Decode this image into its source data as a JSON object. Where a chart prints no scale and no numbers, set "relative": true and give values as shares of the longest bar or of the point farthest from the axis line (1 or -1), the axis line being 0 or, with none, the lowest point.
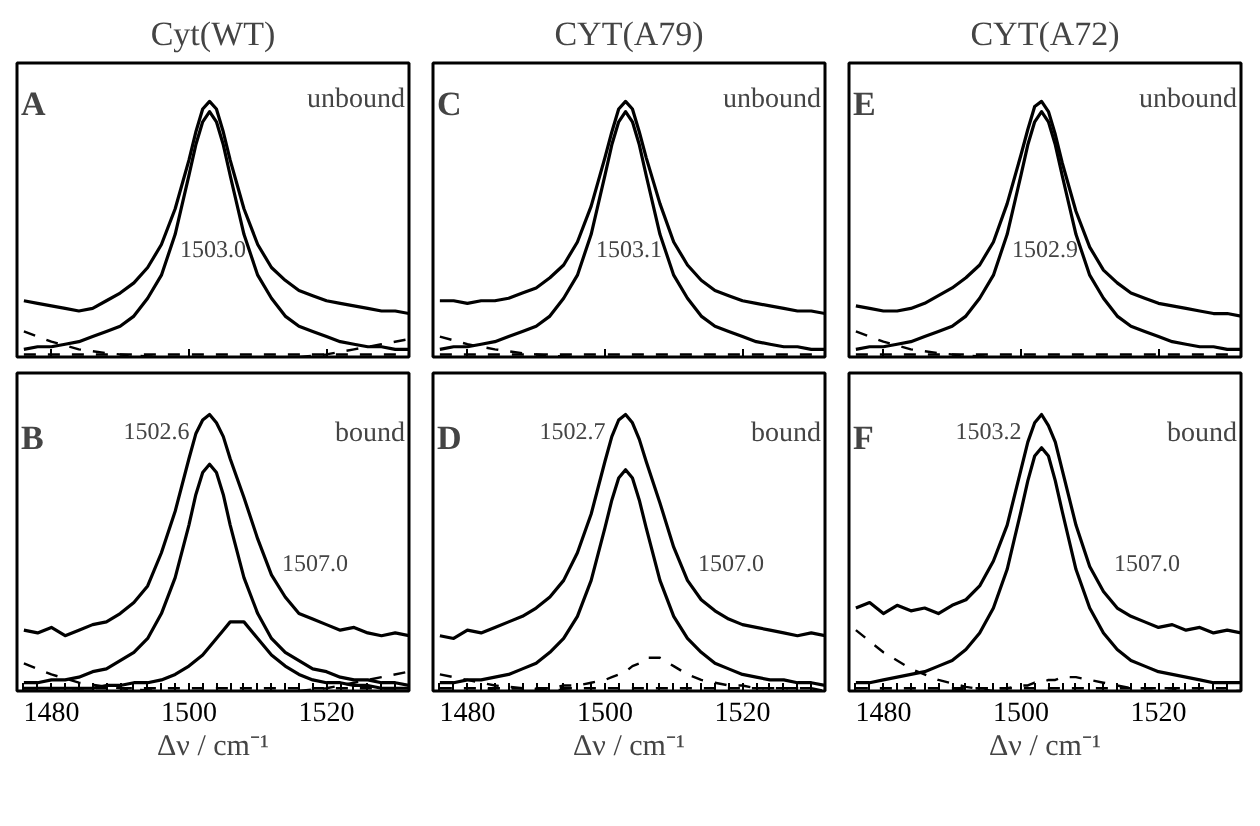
{
  "chart_data": [
    {
      "type": "line",
      "title": "Cyt(WT)",
      "relative": true,
      "tick_labels": false,
      "xlim": [
        1475,
        1532
      ],
      "xticks": [
        1480,
        1500,
        1520
      ],
      "x": [
        1476,
        1478,
        1480,
        1482,
        1484,
        1486,
        1488,
        1490,
        1492,
        1494,
        1496,
        1498,
        1500,
        1501,
        1502,
        1503,
        1504,
        1505,
        1506,
        1508,
        1510,
        1512,
        1514,
        1516,
        1518,
        1520,
        1522,
        1524,
        1526,
        1528,
        1530,
        1532
      ],
      "annotations": [
        "A",
        "unbound",
        "1503.0"
      ],
      "series": [
        {
          "color": "#000000",
          "values": [
            0.22,
            0.21,
            0.2,
            0.19,
            0.18,
            0.19,
            0.22,
            0.25,
            0.29,
            0.35,
            0.44,
            0.58,
            0.77,
            0.88,
            0.97,
            1.0,
            0.97,
            0.88,
            0.77,
            0.58,
            0.44,
            0.35,
            0.3,
            0.26,
            0.24,
            0.22,
            0.21,
            0.2,
            0.19,
            0.18,
            0.18,
            0.17
          ]
        },
        {
          "color": "#000000",
          "values": [
            0.03,
            0.04,
            0.04,
            0.05,
            0.06,
            0.08,
            0.1,
            0.12,
            0.16,
            0.23,
            0.32,
            0.48,
            0.71,
            0.83,
            0.92,
            0.96,
            0.92,
            0.83,
            0.71,
            0.48,
            0.32,
            0.23,
            0.16,
            0.12,
            0.1,
            0.08,
            0.06,
            0.05,
            0.04,
            0.04,
            0.03,
            0.03
          ]
        },
        {
          "color": "#000000",
          "line_style": "dashed",
          "x": [
            1476,
            1480,
            1484,
            1488,
            1492,
            1496
          ],
          "values": [
            0.1,
            0.06,
            0.03,
            0.015,
            0.005,
            0
          ]
        },
        {
          "color": "#000000",
          "line_style": "dashed",
          "x": [
            1516,
            1520,
            1524,
            1528,
            1532
          ],
          "values": [
            0,
            0.01,
            0.03,
            0.05,
            0.07
          ]
        },
        {
          "color": "#000000",
          "line_style": "dashed",
          "x": [
            1476,
            1532
          ],
          "values": [
            0.01,
            0.01
          ]
        }
      ]
    },
    {
      "type": "line",
      "title": "CYT(A79)",
      "relative": true,
      "tick_labels": false,
      "xlim": [
        1475,
        1532
      ],
      "xticks": [
        1480,
        1500,
        1520
      ],
      "x": [
        1476,
        1478,
        1480,
        1482,
        1484,
        1486,
        1488,
        1490,
        1492,
        1494,
        1496,
        1498,
        1500,
        1501,
        1502,
        1503,
        1504,
        1505,
        1506,
        1508,
        1510,
        1512,
        1514,
        1516,
        1518,
        1520,
        1522,
        1524,
        1526,
        1528,
        1530,
        1532
      ],
      "annotations": [
        "C",
        "unbound",
        "1503.1"
      ],
      "series": [
        {
          "color": "#000000",
          "values": [
            0.22,
            0.22,
            0.21,
            0.22,
            0.22,
            0.23,
            0.25,
            0.27,
            0.31,
            0.36,
            0.45,
            0.59,
            0.78,
            0.88,
            0.97,
            1.0,
            0.97,
            0.88,
            0.78,
            0.6,
            0.45,
            0.36,
            0.3,
            0.26,
            0.24,
            0.22,
            0.21,
            0.2,
            0.19,
            0.18,
            0.18,
            0.17
          ]
        },
        {
          "color": "#000000",
          "values": [
            0.03,
            0.04,
            0.04,
            0.05,
            0.06,
            0.08,
            0.1,
            0.12,
            0.16,
            0.23,
            0.32,
            0.48,
            0.71,
            0.83,
            0.92,
            0.96,
            0.92,
            0.83,
            0.71,
            0.48,
            0.32,
            0.23,
            0.16,
            0.12,
            0.1,
            0.08,
            0.06,
            0.05,
            0.04,
            0.04,
            0.03,
            0.03
          ]
        },
        {
          "color": "#000000",
          "line_style": "dashed",
          "x": [
            1476,
            1480,
            1484,
            1488,
            1492,
            1496
          ],
          "values": [
            0.08,
            0.05,
            0.03,
            0.015,
            0.005,
            0
          ]
        },
        {
          "color": "#000000",
          "line_style": "dashed",
          "x": [
            1476,
            1532
          ],
          "values": [
            0.01,
            0.01
          ]
        }
      ]
    },
    {
      "type": "line",
      "title": "CYT(A72)",
      "relative": true,
      "tick_labels": false,
      "xlim": [
        1475,
        1532
      ],
      "xticks": [
        1480,
        1500,
        1520
      ],
      "x": [
        1476,
        1478,
        1480,
        1482,
        1484,
        1486,
        1488,
        1490,
        1492,
        1494,
        1496,
        1498,
        1500,
        1501,
        1502,
        1503,
        1504,
        1505,
        1506,
        1508,
        1510,
        1512,
        1514,
        1516,
        1518,
        1520,
        1522,
        1524,
        1526,
        1528,
        1530,
        1532
      ],
      "annotations": [
        "E",
        "unbound",
        "1502.9"
      ],
      "series": [
        {
          "color": "#000000",
          "values": [
            0.2,
            0.19,
            0.18,
            0.18,
            0.19,
            0.21,
            0.24,
            0.27,
            0.31,
            0.36,
            0.45,
            0.6,
            0.79,
            0.89,
            0.98,
            1.0,
            0.96,
            0.87,
            0.76,
            0.57,
            0.43,
            0.34,
            0.29,
            0.25,
            0.23,
            0.21,
            0.2,
            0.19,
            0.18,
            0.17,
            0.17,
            0.16
          ]
        },
        {
          "color": "#000000",
          "values": [
            0.03,
            0.04,
            0.04,
            0.05,
            0.06,
            0.08,
            0.1,
            0.12,
            0.16,
            0.23,
            0.32,
            0.48,
            0.71,
            0.83,
            0.92,
            0.96,
            0.92,
            0.83,
            0.71,
            0.48,
            0.32,
            0.23,
            0.16,
            0.12,
            0.1,
            0.08,
            0.06,
            0.05,
            0.04,
            0.04,
            0.03,
            0.03
          ]
        },
        {
          "color": "#000000",
          "line_style": "dashed",
          "x": [
            1476,
            1480,
            1484,
            1488,
            1492,
            1496
          ],
          "values": [
            0.1,
            0.06,
            0.03,
            0.015,
            0.005,
            0
          ]
        },
        {
          "color": "#000000",
          "line_style": "dashed",
          "x": [
            1476,
            1532
          ],
          "values": [
            0.01,
            0.01
          ]
        }
      ]
    },
    {
      "type": "line",
      "xlabel": "Δν / cm⁻¹",
      "relative": true,
      "tick_labels": "x",
      "xlim": [
        1475,
        1532
      ],
      "xticks": [
        {
          "value": 1476,
          "label": null
        },
        {
          "value": 1478,
          "label": null
        },
        1480,
        {
          "value": 1482,
          "label": null
        },
        {
          "value": 1484,
          "label": null
        },
        {
          "value": 1486,
          "label": null
        },
        {
          "value": 1488,
          "label": null
        },
        {
          "value": 1490,
          "label": null
        },
        {
          "value": 1492,
          "label": null
        },
        {
          "value": 1494,
          "label": null
        },
        {
          "value": 1496,
          "label": null
        },
        {
          "value": 1498,
          "label": null
        },
        1500,
        {
          "value": 1502,
          "label": null
        },
        {
          "value": 1504,
          "label": null
        },
        {
          "value": 1506,
          "label": null
        },
        {
          "value": 1508,
          "label": null
        },
        {
          "value": 1510,
          "label": null
        },
        {
          "value": 1512,
          "label": null
        },
        {
          "value": 1514,
          "label": null
        },
        {
          "value": 1516,
          "label": null
        },
        {
          "value": 1518,
          "label": null
        },
        1520,
        {
          "value": 1522,
          "label": null
        },
        {
          "value": 1524,
          "label": null
        },
        {
          "value": 1526,
          "label": null
        },
        {
          "value": 1528,
          "label": null
        },
        {
          "value": 1530,
          "label": null
        }
      ],
      "x": [
        1476,
        1478,
        1480,
        1482,
        1484,
        1486,
        1488,
        1490,
        1492,
        1494,
        1496,
        1498,
        1500,
        1501,
        1502,
        1503,
        1504,
        1505,
        1506,
        1508,
        1510,
        1512,
        1514,
        1516,
        1518,
        1520,
        1522,
        1524,
        1526,
        1528,
        1530,
        1532
      ],
      "annotations": [
        "B",
        "bound",
        "1502.6",
        "1507.0"
      ],
      "series": [
        {
          "color": "#000000",
          "values": [
            0.22,
            0.21,
            0.23,
            0.2,
            0.22,
            0.24,
            0.25,
            0.28,
            0.32,
            0.38,
            0.5,
            0.65,
            0.84,
            0.93,
            0.98,
            1.0,
            0.97,
            0.92,
            0.84,
            0.7,
            0.55,
            0.42,
            0.34,
            0.28,
            0.26,
            0.24,
            0.22,
            0.23,
            0.21,
            0.2,
            0.21,
            0.2
          ]
        },
        {
          "color": "#000000",
          "values": [
            0.03,
            0.03,
            0.04,
            0.04,
            0.05,
            0.07,
            0.08,
            0.11,
            0.14,
            0.19,
            0.28,
            0.41,
            0.6,
            0.71,
            0.79,
            0.82,
            0.79,
            0.71,
            0.6,
            0.41,
            0.28,
            0.19,
            0.14,
            0.11,
            0.08,
            0.07,
            0.05,
            0.04,
            0.04,
            0.03,
            0.03,
            0.02
          ]
        },
        {
          "color": "#000000",
          "values": [
            0.01,
            0.01,
            0.01,
            0.01,
            0.01,
            0.01,
            0.02,
            0.02,
            0.03,
            0.03,
            0.04,
            0.06,
            0.09,
            0.11,
            0.13,
            0.16,
            0.19,
            0.22,
            0.25,
            0.25,
            0.19,
            0.13,
            0.09,
            0.06,
            0.04,
            0.03,
            0.03,
            0.02,
            0.02,
            0.01,
            0.01,
            0.01
          ]
        },
        {
          "color": "#000000",
          "line_style": "dashed",
          "x": [
            1476,
            1480,
            1484,
            1488,
            1492,
            1496
          ],
          "values": [
            0.1,
            0.06,
            0.03,
            0.015,
            0.005,
            0
          ]
        },
        {
          "color": "#000000",
          "line_style": "dashed",
          "x": [
            1516,
            1520,
            1524,
            1528,
            1532
          ],
          "values": [
            0,
            0.01,
            0.03,
            0.05,
            0.07
          ]
        },
        {
          "color": "#000000",
          "line_style": "dashed",
          "x": [
            1476,
            1532
          ],
          "values": [
            0.01,
            0.01
          ]
        }
      ]
    },
    {
      "type": "line",
      "xlabel": "Δν / cm⁻¹",
      "relative": true,
      "tick_labels": "x",
      "xlim": [
        1475,
        1532
      ],
      "xticks": [
        {
          "value": 1476,
          "label": null
        },
        {
          "value": 1478,
          "label": null
        },
        1480,
        {
          "value": 1482,
          "label": null
        },
        {
          "value": 1484,
          "label": null
        },
        {
          "value": 1486,
          "label": null
        },
        {
          "value": 1488,
          "label": null
        },
        {
          "value": 1490,
          "label": null
        },
        {
          "value": 1492,
          "label": null
        },
        {
          "value": 1494,
          "label": null
        },
        {
          "value": 1496,
          "label": null
        },
        {
          "value": 1498,
          "label": null
        },
        1500,
        {
          "value": 1502,
          "label": null
        },
        {
          "value": 1504,
          "label": null
        },
        {
          "value": 1506,
          "label": null
        },
        {
          "value": 1508,
          "label": null
        },
        {
          "value": 1510,
          "label": null
        },
        {
          "value": 1512,
          "label": null
        },
        {
          "value": 1514,
          "label": null
        },
        {
          "value": 1516,
          "label": null
        },
        {
          "value": 1518,
          "label": null
        },
        1520,
        {
          "value": 1522,
          "label": null
        },
        {
          "value": 1524,
          "label": null
        },
        {
          "value": 1526,
          "label": null
        },
        {
          "value": 1528,
          "label": null
        },
        {
          "value": 1530,
          "label": null
        }
      ],
      "x": [
        1476,
        1478,
        1480,
        1482,
        1484,
        1486,
        1488,
        1490,
        1492,
        1494,
        1496,
        1498,
        1500,
        1501,
        1502,
        1503,
        1504,
        1505,
        1506,
        1508,
        1510,
        1512,
        1514,
        1516,
        1518,
        1520,
        1522,
        1524,
        1526,
        1528,
        1530,
        1532
      ],
      "annotations": [
        "D",
        "bound",
        "1502.7",
        "1507.0"
      ],
      "series": [
        {
          "color": "#000000",
          "values": [
            0.2,
            0.19,
            0.22,
            0.21,
            0.23,
            0.25,
            0.27,
            0.3,
            0.34,
            0.4,
            0.5,
            0.64,
            0.83,
            0.92,
            0.98,
            1.0,
            0.97,
            0.91,
            0.83,
            0.68,
            0.52,
            0.4,
            0.33,
            0.29,
            0.26,
            0.24,
            0.23,
            0.22,
            0.21,
            0.2,
            0.21,
            0.2
          ]
        },
        {
          "color": "#000000",
          "values": [
            0.03,
            0.03,
            0.04,
            0.04,
            0.05,
            0.06,
            0.08,
            0.1,
            0.14,
            0.19,
            0.27,
            0.4,
            0.59,
            0.69,
            0.77,
            0.8,
            0.77,
            0.69,
            0.59,
            0.4,
            0.27,
            0.19,
            0.14,
            0.1,
            0.08,
            0.06,
            0.05,
            0.04,
            0.04,
            0.03,
            0.03,
            0.02
          ]
        },
        {
          "color": "#000000",
          "line_style": "dashed",
          "values": [
            0,
            0,
            0,
            0,
            0.01,
            0.01,
            0.01,
            0.01,
            0.01,
            0.02,
            0.02,
            0.03,
            0.04,
            0.05,
            0.06,
            0.07,
            0.09,
            0.1,
            0.12,
            0.12,
            0.09,
            0.06,
            0.04,
            0.03,
            0.02,
            0.02,
            0.01,
            0.01,
            0.01,
            0.01,
            0.01,
            0
          ]
        },
        {
          "color": "#000000",
          "line_style": "dashed",
          "x": [
            1476,
            1480,
            1484,
            1488,
            1492,
            1496
          ],
          "values": [
            0.06,
            0.04,
            0.02,
            0.01,
            0.005,
            0
          ]
        },
        {
          "color": "#000000",
          "line_style": "dashed",
          "x": [
            1476,
            1532
          ],
          "values": [
            0.01,
            0.01
          ]
        }
      ]
    },
    {
      "type": "line",
      "xlabel": "Δν / cm⁻¹",
      "relative": true,
      "tick_labels": "x",
      "xlim": [
        1475,
        1532
      ],
      "xticks": [
        {
          "value": 1476,
          "label": null
        },
        {
          "value": 1478,
          "label": null
        },
        1480,
        {
          "value": 1482,
          "label": null
        },
        {
          "value": 1484,
          "label": null
        },
        {
          "value": 1486,
          "label": null
        },
        {
          "value": 1488,
          "label": null
        },
        {
          "value": 1490,
          "label": null
        },
        {
          "value": 1492,
          "label": null
        },
        {
          "value": 1494,
          "label": null
        },
        {
          "value": 1496,
          "label": null
        },
        {
          "value": 1498,
          "label": null
        },
        1500,
        {
          "value": 1502,
          "label": null
        },
        {
          "value": 1504,
          "label": null
        },
        {
          "value": 1506,
          "label": null
        },
        {
          "value": 1508,
          "label": null
        },
        {
          "value": 1510,
          "label": null
        },
        {
          "value": 1512,
          "label": null
        },
        {
          "value": 1514,
          "label": null
        },
        {
          "value": 1516,
          "label": null
        },
        {
          "value": 1518,
          "label": null
        },
        1520,
        {
          "value": 1522,
          "label": null
        },
        {
          "value": 1524,
          "label": null
        },
        {
          "value": 1526,
          "label": null
        },
        {
          "value": 1528,
          "label": null
        },
        {
          "value": 1530,
          "label": null
        }
      ],
      "x": [
        1476,
        1478,
        1480,
        1482,
        1484,
        1486,
        1488,
        1490,
        1492,
        1494,
        1496,
        1498,
        1500,
        1501,
        1502,
        1503,
        1504,
        1505,
        1506,
        1508,
        1510,
        1512,
        1514,
        1516,
        1518,
        1520,
        1522,
        1524,
        1526,
        1528,
        1530,
        1532
      ],
      "annotations": [
        "F",
        "bound",
        "1503.2",
        "1507.0"
      ],
      "series": [
        {
          "color": "#000000",
          "values": [
            0.3,
            0.32,
            0.28,
            0.31,
            0.29,
            0.3,
            0.28,
            0.31,
            0.33,
            0.38,
            0.47,
            0.6,
            0.8,
            0.9,
            0.97,
            1.0,
            0.96,
            0.9,
            0.8,
            0.6,
            0.45,
            0.36,
            0.3,
            0.27,
            0.25,
            0.23,
            0.24,
            0.22,
            0.23,
            0.21,
            0.22,
            0.21
          ]
        },
        {
          "color": "#000000",
          "values": [
            0.03,
            0.03,
            0.04,
            0.05,
            0.06,
            0.07,
            0.09,
            0.11,
            0.15,
            0.21,
            0.3,
            0.44,
            0.65,
            0.76,
            0.85,
            0.88,
            0.85,
            0.76,
            0.65,
            0.44,
            0.3,
            0.21,
            0.15,
            0.11,
            0.09,
            0.07,
            0.06,
            0.05,
            0.04,
            0.03,
            0.03,
            0.03
          ]
        },
        {
          "color": "#000000",
          "line_style": "dashed",
          "values": [
            0,
            0,
            0,
            0,
            0,
            0,
            0,
            0,
            0.01,
            0.01,
            0.01,
            0.01,
            0.02,
            0.02,
            0.03,
            0.03,
            0.04,
            0.04,
            0.05,
            0.05,
            0.04,
            0.03,
            0.02,
            0.01,
            0.01,
            0.01,
            0.01,
            0,
            0,
            0,
            0,
            0
          ]
        },
        {
          "color": "#000000",
          "line_style": "dashed",
          "x": [
            1476,
            1480,
            1484,
            1488,
            1492,
            1496
          ],
          "values": [
            0.22,
            0.14,
            0.08,
            0.04,
            0.015,
            0
          ]
        },
        {
          "color": "#000000",
          "line_style": "dashed",
          "x": [
            1476,
            1532
          ],
          "values": [
            0.01,
            0.01
          ]
        }
      ]
    }
  ]
}
